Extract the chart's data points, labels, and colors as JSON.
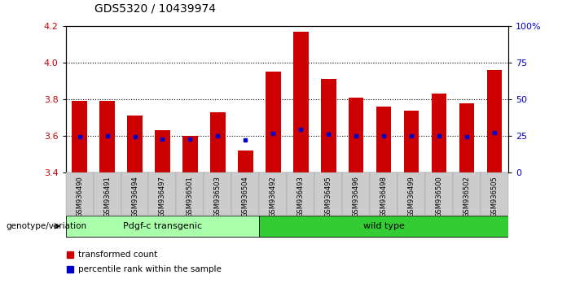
{
  "title": "GDS5320 / 10439974",
  "samples": [
    "GSM936490",
    "GSM936491",
    "GSM936494",
    "GSM936497",
    "GSM936501",
    "GSM936503",
    "GSM936504",
    "GSM936492",
    "GSM936493",
    "GSM936495",
    "GSM936496",
    "GSM936498",
    "GSM936499",
    "GSM936500",
    "GSM936502",
    "GSM936505"
  ],
  "bar_values": [
    3.79,
    3.79,
    3.71,
    3.63,
    3.6,
    3.73,
    3.52,
    3.95,
    4.17,
    3.91,
    3.81,
    3.76,
    3.74,
    3.83,
    3.78,
    3.96
  ],
  "blue_values": [
    3.595,
    3.6,
    3.597,
    3.585,
    3.583,
    3.6,
    3.578,
    3.615,
    3.635,
    3.61,
    3.6,
    3.6,
    3.6,
    3.6,
    3.598,
    3.62
  ],
  "groups": [
    {
      "label": "Pdgf-c transgenic",
      "start": 0,
      "end": 6,
      "color": "#aaffaa"
    },
    {
      "label": "wild type",
      "start": 7,
      "end": 15,
      "color": "#33cc33"
    }
  ],
  "ylim": [
    3.4,
    4.2
  ],
  "y2lim": [
    0,
    100
  ],
  "y_ticks": [
    3.4,
    3.6,
    3.8,
    4.0,
    4.2
  ],
  "y2_ticks": [
    0,
    25,
    50,
    75,
    100
  ],
  "bar_color": "#cc0000",
  "blue_color": "#0000cc",
  "bar_width": 0.55,
  "background_color": "#ffffff",
  "plot_bg_color": "#ffffff",
  "tick_label_color_left": "#cc0000",
  "tick_label_color_right": "#0000cc",
  "legend_items": [
    "transformed count",
    "percentile rank within the sample"
  ],
  "genotype_label": "genotype/variation",
  "title_fontsize": 10,
  "axis_fontsize": 8
}
